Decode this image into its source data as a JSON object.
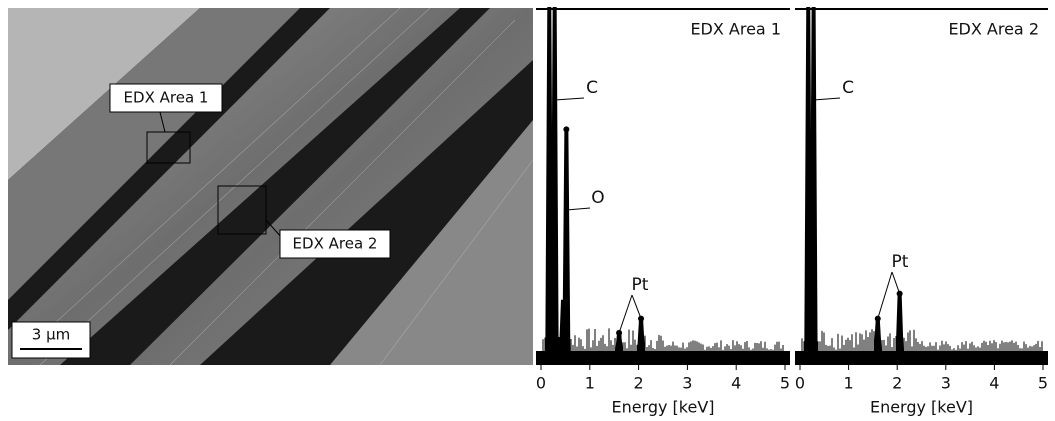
{
  "image": {
    "labels": [
      "EDX Area 1",
      "EDX Area 2"
    ],
    "scale_bar": "3 µm"
  },
  "chart_data": [
    {
      "type": "spectrum",
      "title": "EDX Area 1",
      "x_label": "Energy [keV]",
      "xlim": [
        0,
        5
      ],
      "xticks": [
        0,
        1,
        2,
        3,
        4,
        5
      ],
      "ylim": [
        0,
        100
      ],
      "x": [
        0.17,
        0.28,
        0.45,
        0.52,
        1.6,
        2.05
      ],
      "values": [
        100,
        100,
        18,
        66,
        9,
        13
      ],
      "color": "#000000",
      "annotations": [
        {
          "text": "C",
          "x": [
            0.28
          ]
        },
        {
          "text": "O",
          "x": [
            0.52
          ]
        },
        {
          "text": "Pt",
          "x": [
            1.6,
            2.05
          ]
        }
      ]
    },
    {
      "type": "spectrum",
      "title": "EDX Area 2",
      "x_label": "Energy [keV]",
      "xlim": [
        0,
        5
      ],
      "xticks": [
        0,
        1,
        2,
        3,
        4,
        5
      ],
      "ylim": [
        0,
        100
      ],
      "x": [
        0.17,
        0.28,
        1.6,
        2.05
      ],
      "values": [
        100,
        100,
        13,
        20
      ],
      "color": "#000000",
      "annotations": [
        {
          "text": "C",
          "x": [
            0.28
          ]
        },
        {
          "text": "Pt",
          "x": [
            1.6,
            2.05
          ]
        }
      ]
    }
  ]
}
